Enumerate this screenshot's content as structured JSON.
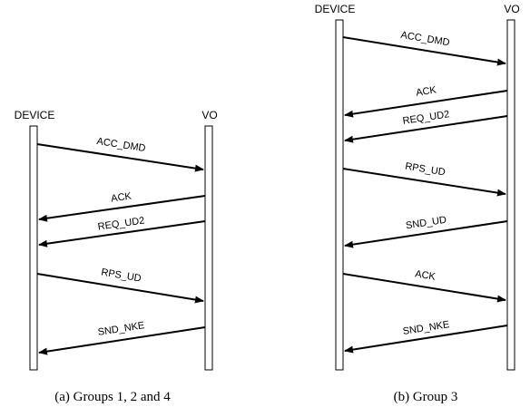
{
  "diagrams": [
    {
      "id": "a",
      "caption": "(a) Groups 1, 2 and 4",
      "left_party": "DEVICE",
      "right_party": "VO",
      "messages": [
        {
          "label": "ACC_DMD",
          "direction": "right"
        },
        {
          "label": "ACK",
          "direction": "left"
        },
        {
          "label": "REQ_UD2",
          "direction": "left"
        },
        {
          "label": "RPS_UD",
          "direction": "right"
        },
        {
          "label": "SND_NKE",
          "direction": "left"
        }
      ]
    },
    {
      "id": "b",
      "caption": "(b) Group 3",
      "left_party": "DEVICE",
      "right_party": "VO",
      "messages": [
        {
          "label": "ACC_DMD",
          "direction": "right"
        },
        {
          "label": "ACK",
          "direction": "left"
        },
        {
          "label": "REQ_UD2",
          "direction": "left"
        },
        {
          "label": "RPS_UD",
          "direction": "right"
        },
        {
          "label": "SND_UD",
          "direction": "left"
        },
        {
          "label": "ACK",
          "direction": "right"
        },
        {
          "label": "SND_NKE",
          "direction": "left"
        }
      ]
    }
  ]
}
